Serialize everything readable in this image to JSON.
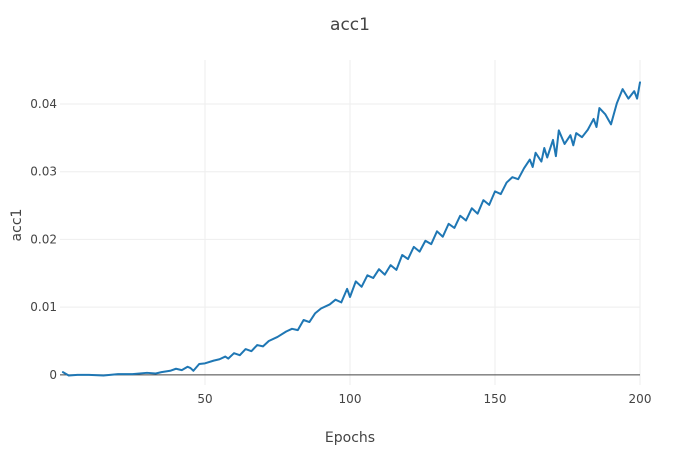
{
  "chart_data": {
    "type": "line",
    "title": "acc1",
    "xlabel": "Epochs",
    "ylabel": "acc1",
    "xlim": [
      0,
      200
    ],
    "ylim": [
      -0.0015,
      0.0465
    ],
    "x_ticks": [
      50,
      100,
      150,
      200
    ],
    "x_tick_labels": [
      "50",
      "100",
      "150",
      "200"
    ],
    "y_ticks": [
      0,
      0.01,
      0.02,
      0.03,
      0.04
    ],
    "y_tick_labels": [
      "0",
      "0.01",
      "0.02",
      "0.03",
      "0.04"
    ],
    "grid": true,
    "legend": "none",
    "colors": {
      "series": "#1f77b4"
    },
    "series": [
      {
        "x": [
          1,
          3,
          6,
          10,
          15,
          20,
          25,
          30,
          33,
          35,
          38,
          40,
          42,
          44,
          45,
          46,
          48,
          50,
          53,
          55,
          57,
          58,
          60,
          62,
          64,
          66,
          68,
          70,
          72,
          75,
          78,
          80,
          82,
          84,
          86,
          88,
          90,
          93,
          95,
          97,
          99,
          100,
          102,
          104,
          106,
          108,
          110,
          112,
          114,
          116,
          118,
          120,
          122,
          124,
          126,
          128,
          130,
          132,
          134,
          136,
          138,
          140,
          142,
          144,
          146,
          148,
          150,
          152,
          154,
          156,
          158,
          160,
          162,
          163,
          164,
          166,
          167,
          168,
          170,
          171,
          172,
          174,
          176,
          177,
          178,
          180,
          182,
          184,
          185,
          186,
          188,
          190,
          192,
          194,
          196,
          198,
          199,
          200
        ],
        "values": [
          0.0004,
          -0.0001,
          0.0,
          0.0,
          -0.0001,
          0.0001,
          0.0001,
          0.0003,
          0.0002,
          0.0004,
          0.0006,
          0.0009,
          0.0007,
          0.0012,
          0.001,
          0.0006,
          0.0016,
          0.0017,
          0.0021,
          0.0023,
          0.0027,
          0.0024,
          0.0032,
          0.0029,
          0.0038,
          0.0035,
          0.0044,
          0.0042,
          0.005,
          0.0056,
          0.0064,
          0.0068,
          0.0066,
          0.0081,
          0.0078,
          0.0091,
          0.0098,
          0.0104,
          0.0111,
          0.0107,
          0.0127,
          0.0115,
          0.0138,
          0.013,
          0.0147,
          0.0143,
          0.0156,
          0.0148,
          0.0162,
          0.0155,
          0.0177,
          0.0171,
          0.0189,
          0.0182,
          0.0198,
          0.0193,
          0.0212,
          0.0204,
          0.0223,
          0.0217,
          0.0235,
          0.0228,
          0.0246,
          0.0238,
          0.0258,
          0.0251,
          0.0271,
          0.0267,
          0.0284,
          0.0292,
          0.0289,
          0.0305,
          0.0318,
          0.0307,
          0.0328,
          0.0315,
          0.0335,
          0.0321,
          0.0347,
          0.0323,
          0.0361,
          0.0341,
          0.0354,
          0.0339,
          0.0357,
          0.0351,
          0.0362,
          0.0378,
          0.0366,
          0.0394,
          0.0385,
          0.037,
          0.0401,
          0.0422,
          0.0408,
          0.0419,
          0.0408,
          0.0432
        ]
      }
    ]
  }
}
